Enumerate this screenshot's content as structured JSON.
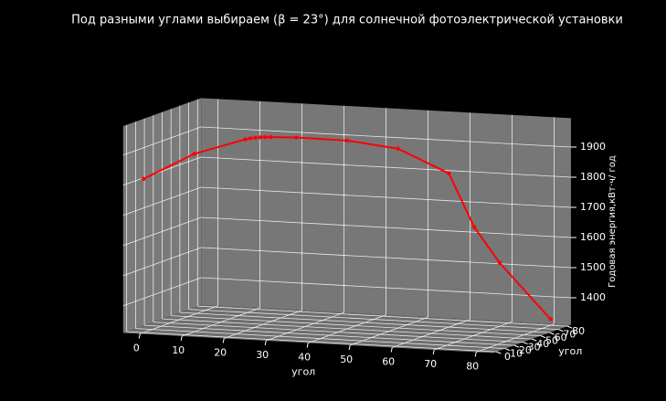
{
  "chart_data": {
    "type": "line3d",
    "title": "Под разными углами выбираем (β = 23°) для солнечной фотоэлектрической установки",
    "xlabel": "угол",
    "ylabel": "угол",
    "zlabel": "Годовая энергия,кВт·ч/ год",
    "x": [
      0,
      10,
      20,
      21,
      22,
      23,
      24,
      25,
      30,
      40,
      50,
      60,
      65,
      70,
      80
    ],
    "y": [
      0,
      10,
      20,
      21,
      22,
      23,
      24,
      25,
      30,
      40,
      50,
      60,
      65,
      70,
      80
    ],
    "z": [
      1820,
      1900,
      1945,
      1948,
      1950,
      1951,
      1951,
      1951,
      1948,
      1935,
      1905,
      1820,
      1640,
      1520,
      1330
    ],
    "color": "#ff0000",
    "xlim": [
      -4,
      84
    ],
    "ylim": [
      -4,
      84
    ],
    "zlim": [
      1310,
      1996
    ],
    "xticks": [
      0,
      10,
      20,
      30,
      40,
      50,
      60,
      70,
      80
    ],
    "yticks": [
      0,
      10,
      20,
      30,
      40,
      50,
      60,
      70,
      80
    ],
    "zticks": [
      1400,
      1500,
      1600,
      1700,
      1800,
      1900
    ],
    "grid": true
  }
}
